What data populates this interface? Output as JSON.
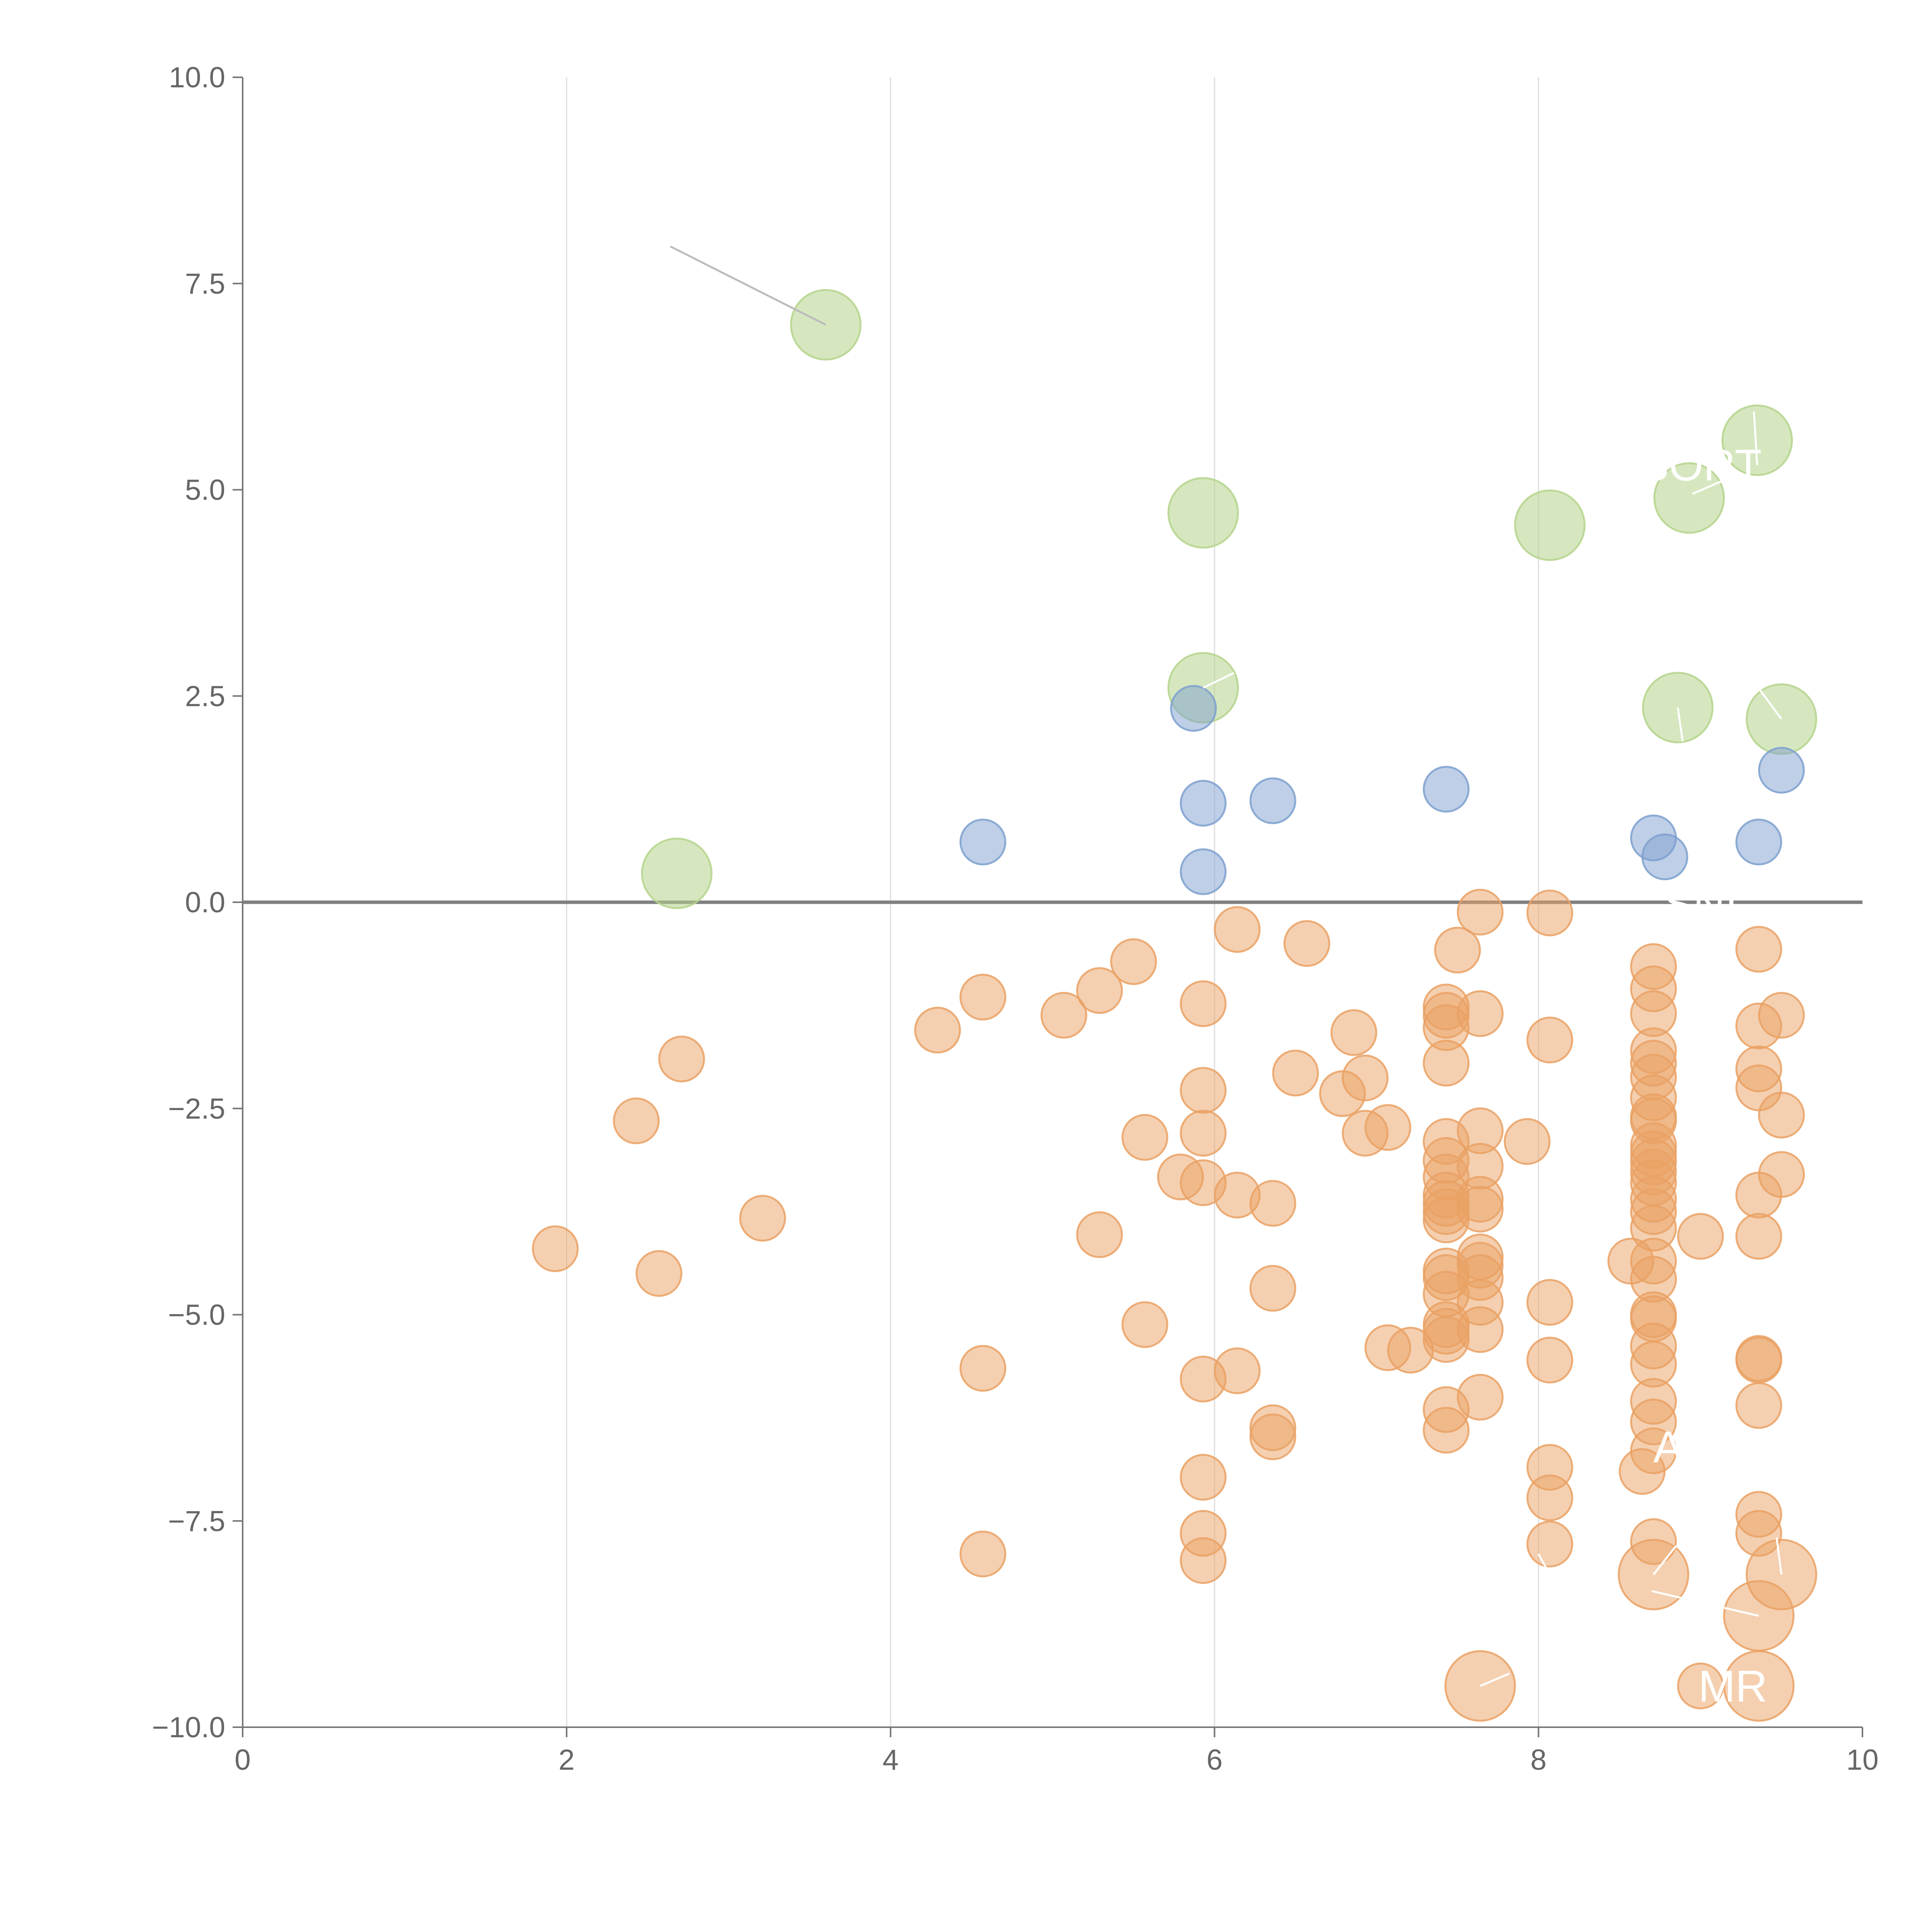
{
  "chart_data": {
    "type": "scatter",
    "title": "",
    "xlabel": "",
    "ylabel": "",
    "xlim": [
      0,
      10
    ],
    "ylim": [
      -10,
      10
    ],
    "x_ticks": [
      "0",
      "2",
      "4",
      "6",
      "8",
      "10"
    ],
    "y_ticks": [
      "10.0",
      "7.5",
      "5.0",
      "2.5",
      "0.0",
      "−2.5",
      "−5.0",
      "−7.5",
      "−10.0"
    ],
    "grid": "vertical lines only",
    "zero_line": true,
    "colors": {
      "green": "#b5d38c",
      "blue": "#7ea0cf",
      "orange": "#eaa164",
      "leader": "#bbbbbb",
      "label": "#ffffff"
    },
    "series": [
      {
        "color": "green",
        "size": "large",
        "points": [
          [
            3.6,
            7.0
          ],
          [
            5.93,
            4.72
          ],
          [
            8.07,
            4.57
          ],
          [
            9.35,
            5.6
          ],
          [
            8.93,
            4.9
          ],
          [
            5.93,
            2.6
          ],
          [
            8.86,
            2.36
          ],
          [
            9.5,
            2.22
          ],
          [
            2.68,
            0.35
          ]
        ]
      },
      {
        "color": "blue",
        "size": "small",
        "points": [
          [
            5.87,
            2.35
          ],
          [
            5.93,
            1.2
          ],
          [
            6.36,
            1.23
          ],
          [
            7.43,
            1.37
          ],
          [
            9.5,
            1.6
          ],
          [
            4.57,
            0.73
          ],
          [
            5.93,
            0.37
          ],
          [
            8.71,
            0.78
          ],
          [
            8.78,
            0.55
          ],
          [
            9.36,
            0.73
          ]
        ]
      },
      {
        "color": "orange",
        "size": "small",
        "points": [
          [
            7.64,
            -0.12
          ],
          [
            8.07,
            -0.13
          ],
          [
            6.14,
            -0.33
          ],
          [
            6.57,
            -0.5
          ],
          [
            7.5,
            -0.58
          ],
          [
            5.5,
            -0.72
          ],
          [
            9.36,
            -0.57
          ],
          [
            8.71,
            -0.78
          ],
          [
            5.29,
            -1.07
          ],
          [
            4.57,
            -1.15
          ],
          [
            5.93,
            -1.23
          ],
          [
            8.71,
            -1.05
          ],
          [
            5.07,
            -1.37
          ],
          [
            4.29,
            -1.55
          ],
          [
            7.43,
            -1.27
          ],
          [
            7.43,
            -1.37
          ],
          [
            7.43,
            -1.52
          ],
          [
            7.64,
            -1.35
          ],
          [
            8.71,
            -1.35
          ],
          [
            9.5,
            -1.37
          ],
          [
            9.36,
            -1.5
          ],
          [
            6.86,
            -1.58
          ],
          [
            8.07,
            -1.67
          ],
          [
            8.71,
            -1.8
          ],
          [
            2.71,
            -1.9
          ],
          [
            7.43,
            -1.95
          ],
          [
            8.71,
            -1.95
          ],
          [
            9.36,
            -2.02
          ],
          [
            6.5,
            -2.07
          ],
          [
            6.93,
            -2.13
          ],
          [
            8.71,
            -2.12
          ],
          [
            5.93,
            -2.28
          ],
          [
            9.36,
            -2.25
          ],
          [
            6.79,
            -2.32
          ],
          [
            8.71,
            -2.37
          ],
          [
            2.43,
            -2.65
          ],
          [
            8.71,
            -2.6
          ],
          [
            8.71,
            -2.65
          ],
          [
            9.5,
            -2.58
          ],
          [
            7.07,
            -2.73
          ],
          [
            7.64,
            -2.77
          ],
          [
            5.93,
            -2.8
          ],
          [
            6.93,
            -2.8
          ],
          [
            5.57,
            -2.85
          ],
          [
            7.43,
            -2.9
          ],
          [
            7.93,
            -2.9
          ],
          [
            8.71,
            -2.95
          ],
          [
            8.71,
            -3.05
          ],
          [
            7.43,
            -3.13
          ],
          [
            7.64,
            -3.2
          ],
          [
            8.71,
            -3.15
          ],
          [
            8.71,
            -3.27
          ],
          [
            7.43,
            -3.33
          ],
          [
            5.79,
            -3.33
          ],
          [
            5.93,
            -3.4
          ],
          [
            9.5,
            -3.3
          ],
          [
            8.71,
            -3.4
          ],
          [
            6.14,
            -3.55
          ],
          [
            7.43,
            -3.55
          ],
          [
            9.36,
            -3.55
          ],
          [
            7.64,
            -3.6
          ],
          [
            6.36,
            -3.65
          ],
          [
            7.43,
            -3.65
          ],
          [
            8.71,
            -3.6
          ],
          [
            7.43,
            -3.75
          ],
          [
            7.64,
            -3.72
          ],
          [
            8.71,
            -3.75
          ],
          [
            3.21,
            -3.83
          ],
          [
            7.43,
            -3.85
          ],
          [
            8.71,
            -3.95
          ],
          [
            5.29,
            -4.03
          ],
          [
            9.36,
            -4.05
          ],
          [
            9.0,
            -4.05
          ],
          [
            8.57,
            -4.35
          ],
          [
            8.71,
            -4.35
          ],
          [
            7.64,
            -4.3
          ],
          [
            7.64,
            -4.4
          ],
          [
            2.57,
            -4.5
          ],
          [
            7.43,
            -4.47
          ],
          [
            7.43,
            -4.55
          ],
          [
            7.64,
            -4.55
          ],
          [
            8.71,
            -4.57
          ],
          [
            1.93,
            -4.2
          ],
          [
            6.36,
            -4.68
          ],
          [
            7.43,
            -4.75
          ],
          [
            7.64,
            -4.85
          ],
          [
            8.07,
            -4.85
          ],
          [
            8.71,
            -5.0
          ],
          [
            8.71,
            -5.05
          ],
          [
            5.57,
            -5.12
          ],
          [
            7.43,
            -5.12
          ],
          [
            7.43,
            -5.2
          ],
          [
            7.64,
            -5.18
          ],
          [
            7.43,
            -5.3
          ],
          [
            7.07,
            -5.4
          ],
          [
            7.21,
            -5.43
          ],
          [
            8.71,
            -5.38
          ],
          [
            9.36,
            -5.53
          ],
          [
            9.36,
            -5.55
          ],
          [
            8.07,
            -5.55
          ],
          [
            8.71,
            -5.6
          ],
          [
            4.57,
            -5.65
          ],
          [
            6.14,
            -5.68
          ],
          [
            5.93,
            -5.78
          ],
          [
            7.64,
            -6.0
          ],
          [
            8.71,
            -6.05
          ],
          [
            9.36,
            -6.1
          ],
          [
            7.43,
            -6.15
          ],
          [
            8.71,
            -6.3
          ],
          [
            6.36,
            -6.37
          ],
          [
            7.43,
            -6.4
          ],
          [
            6.36,
            -6.48
          ],
          [
            8.71,
            -6.65
          ],
          [
            8.07,
            -6.85
          ],
          [
            8.64,
            -6.9
          ],
          [
            5.93,
            -6.97
          ],
          [
            8.07,
            -7.22
          ],
          [
            9.36,
            -7.42
          ],
          [
            5.93,
            -7.65
          ],
          [
            9.36,
            -7.65
          ],
          [
            8.71,
            -7.75
          ],
          [
            8.07,
            -7.78
          ],
          [
            4.57,
            -7.9
          ],
          [
            5.93,
            -7.98
          ],
          [
            9.0,
            -9.5
          ]
        ]
      },
      {
        "color": "orange",
        "size": "large",
        "points": [
          [
            8.71,
            -8.15
          ],
          [
            9.5,
            -8.15
          ],
          [
            9.36,
            -8.65
          ],
          [
            7.64,
            -9.5
          ],
          [
            9.36,
            -9.5
          ]
        ]
      }
    ],
    "annotations": [
      {
        "text": "SORT",
        "x": 9.0,
        "y": 5.3
      },
      {
        "text": "SNI",
        "x": 9.0,
        "y": -0.02
      },
      {
        "text": "A",
        "x": 8.8,
        "y": -6.6
      },
      {
        "text": "MR",
        "x": 9.2,
        "y": -9.5
      }
    ],
    "leaders": [
      {
        "from": [
          2.64,
          7.95
        ],
        "to": [
          3.6,
          7.0
        ],
        "color": "leader"
      },
      {
        "from": [
          9.35,
          5.3
        ],
        "to": [
          9.33,
          5.95
        ],
        "color": "label"
      },
      {
        "from": [
          8.95,
          4.95
        ],
        "to": [
          9.15,
          5.12
        ],
        "color": "label"
      },
      {
        "from": [
          5.93,
          2.6
        ],
        "to": [
          6.12,
          2.78
        ],
        "color": "label"
      },
      {
        "from": [
          8.86,
          2.36
        ],
        "to": [
          8.89,
          1.95
        ],
        "color": "label"
      },
      {
        "from": [
          9.5,
          2.22
        ],
        "to": [
          9.35,
          2.62
        ],
        "color": "label"
      },
      {
        "from": [
          8.71,
          -8.15
        ],
        "to": [
          8.85,
          -7.8
        ],
        "color": "label"
      },
      {
        "from": [
          9.36,
          -8.65
        ],
        "to": [
          8.7,
          -8.35
        ],
        "color": "label"
      },
      {
        "from": [
          9.5,
          -8.15
        ],
        "to": [
          9.47,
          -7.7
        ],
        "color": "label"
      },
      {
        "from": [
          7.64,
          -9.5
        ],
        "to": [
          7.82,
          -9.35
        ],
        "color": "label"
      },
      {
        "from": [
          8.07,
          -8.15
        ],
        "to": [
          8.0,
          -7.9
        ],
        "color": "label"
      }
    ]
  }
}
